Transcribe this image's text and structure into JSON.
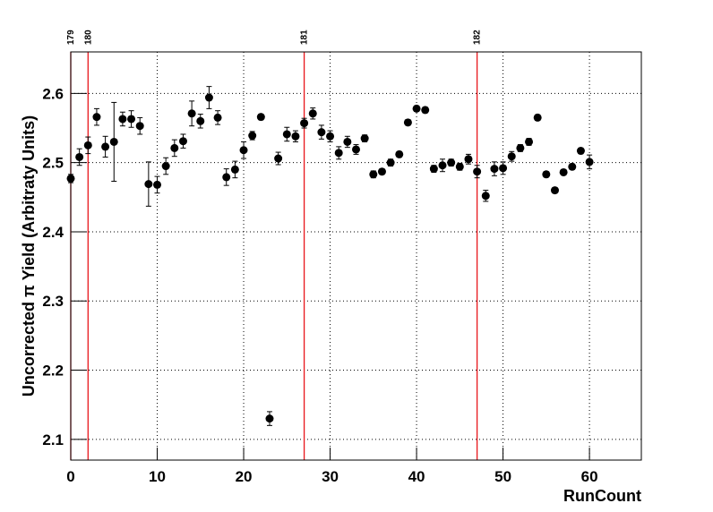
{
  "chart_data": {
    "type": "scatter",
    "x_label": "RunCount",
    "y_label": "Uncorrected π Yield (Arbitraty Units)",
    "x": [
      0,
      1,
      2,
      3,
      4,
      5,
      6,
      7,
      8,
      9,
      10,
      11,
      12,
      13,
      14,
      15,
      16,
      17,
      18,
      19,
      20,
      21,
      22,
      23,
      24,
      25,
      26,
      27,
      28,
      29,
      30,
      31,
      32,
      33,
      34,
      35,
      36,
      37,
      38,
      39,
      40,
      41,
      42,
      43,
      44,
      45,
      46,
      47,
      48,
      49,
      50,
      51,
      52,
      53,
      54,
      55,
      56,
      57,
      58,
      59,
      60
    ],
    "values": [
      2.477,
      2.508,
      2.525,
      2.566,
      2.523,
      2.53,
      2.563,
      2.563,
      2.553,
      2.469,
      2.468,
      2.495,
      2.521,
      2.531,
      2.571,
      2.56,
      2.594,
      2.565,
      2.479,
      2.49,
      2.518,
      2.539,
      2.566,
      2.13,
      2.506,
      2.541,
      2.538,
      2.557,
      2.571,
      2.544,
      2.538,
      2.514,
      2.53,
      2.519,
      2.535,
      2.483,
      2.487,
      2.5,
      2.512,
      2.558,
      2.578,
      2.576,
      2.491,
      2.496,
      2.5,
      2.494,
      2.505,
      2.487,
      2.452,
      2.491,
      2.492,
      2.509,
      2.521,
      2.53,
      2.565,
      2.483,
      2.46,
      2.486,
      2.494,
      2.517,
      2.501
    ],
    "errors": [
      0.006,
      0.012,
      0.012,
      0.012,
      0.015,
      0.057,
      0.01,
      0.012,
      0.012,
      0.032,
      0.012,
      0.012,
      0.012,
      0.01,
      0.018,
      0.01,
      0.016,
      0.01,
      0.012,
      0.012,
      0.012,
      0.006,
      0.004,
      0.01,
      0.009,
      0.01,
      0.008,
      0.007,
      0.008,
      0.01,
      0.008,
      0.009,
      0.008,
      0.007,
      0.005,
      0.005,
      0.004,
      0.005,
      0.004,
      0.004,
      0.004,
      0.004,
      0.005,
      0.009,
      0.005,
      0.005,
      0.007,
      0.009,
      0.008,
      0.01,
      0.009,
      0.007,
      0.005,
      0.005,
      0.004,
      0.004,
      0.004,
      0.004,
      0.004,
      0.004,
      0.01
    ],
    "color": "#000000",
    "xlim": [
      0,
      66
    ],
    "ylim": [
      2.07,
      2.66
    ],
    "xticks": [
      0,
      10,
      20,
      30,
      40,
      50,
      60
    ],
    "yticks": [
      2.1,
      2.2,
      2.3,
      2.4,
      2.5,
      2.6
    ],
    "grid": true,
    "run_markers": [
      {
        "x": 0,
        "label": "179"
      },
      {
        "x": 2,
        "label": "180"
      },
      {
        "x": 27,
        "label": "181"
      },
      {
        "x": 47,
        "label": "182"
      }
    ],
    "marker_color": "#e8161b"
  }
}
